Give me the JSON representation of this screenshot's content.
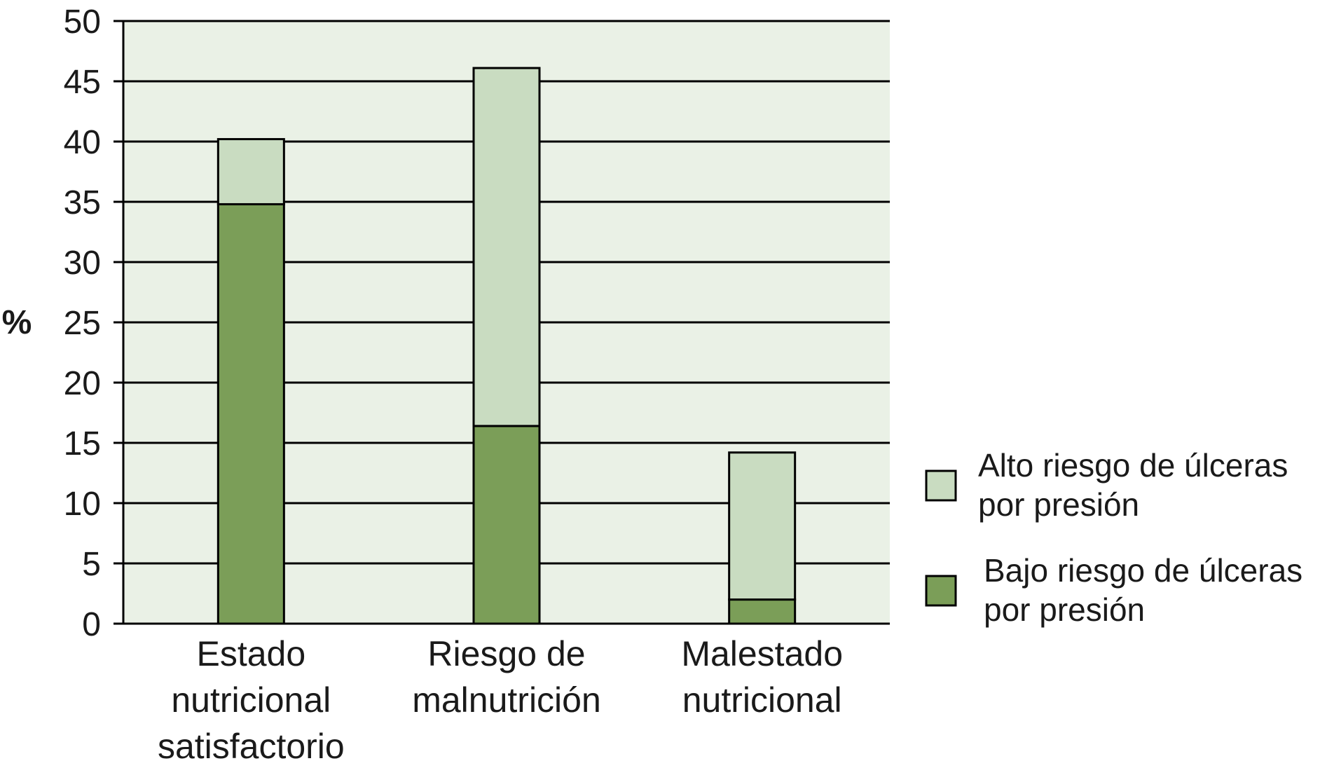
{
  "chart_data": {
    "type": "bar",
    "stacked": true,
    "title": "",
    "xlabel": "",
    "ylabel": "%",
    "ylim": [
      0,
      50
    ],
    "yticks": [
      0,
      5,
      10,
      15,
      20,
      25,
      30,
      35,
      40,
      45,
      50
    ],
    "grid": true,
    "legend_position": "right",
    "categories": [
      [
        "Estado",
        "nutricional",
        "satisfactorio"
      ],
      [
        "Riesgo de",
        "malnutrición"
      ],
      [
        "Malestado",
        "nutricional"
      ]
    ],
    "series": [
      {
        "name": [
          "Bajo riesgo de úlceras",
          "por presión"
        ],
        "values": [
          34.8,
          16.4,
          2.0
        ],
        "color": "#7b9e58"
      },
      {
        "name": [
          "Alto riesgo de úlceras",
          "por presión"
        ],
        "values": [
          5.4,
          29.7,
          12.2
        ],
        "color": "#c9dcc1"
      }
    ],
    "colors": {
      "plot_background": "#eaf1e6",
      "gridline": "#000000",
      "bar_outline": "#000000"
    }
  }
}
